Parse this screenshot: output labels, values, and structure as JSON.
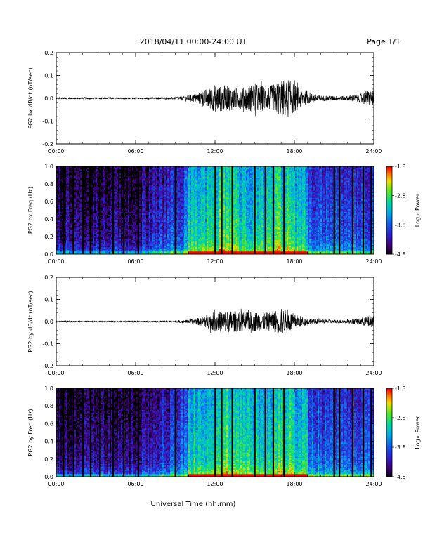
{
  "header": {
    "title": "2018/04/11  00:00-24:00 UT",
    "page": "Page 1/1"
  },
  "chart_data": [
    {
      "type": "line",
      "id": "bx-dbdt",
      "ylabel": "PG2 bx dB/dt (nT/sec)",
      "xlabel": "",
      "xlim": [
        0,
        24
      ],
      "ylim": [
        -0.2,
        0.2
      ],
      "xticks": [
        "00:00",
        "06:00",
        "12:00",
        "18:00",
        "24:00"
      ],
      "yticks": [
        "0.2",
        "0.1",
        "0.0",
        "-0.1",
        "-0.2"
      ],
      "envelope": {
        "x_hours": [
          0,
          2,
          4,
          6,
          8,
          9,
          10,
          11,
          12,
          13,
          14,
          15,
          16,
          17,
          17.5,
          18,
          19,
          20,
          21,
          22,
          23,
          23.5,
          24
        ],
        "amplitude": [
          0.004,
          0.004,
          0.003,
          0.003,
          0.004,
          0.005,
          0.012,
          0.03,
          0.06,
          0.055,
          0.045,
          0.065,
          0.05,
          0.08,
          0.09,
          0.06,
          0.025,
          0.012,
          0.01,
          0.01,
          0.02,
          0.035,
          0.035
        ]
      }
    },
    {
      "type": "heatmap",
      "id": "bx-spectrogram",
      "ylabel": "PG2 bx Freq (Hz)",
      "xlim": [
        0,
        24
      ],
      "ylim": [
        0,
        1
      ],
      "xticks": [
        "00:00",
        "06:00",
        "12:00",
        "18:00",
        "24:00"
      ],
      "yticks": [
        "1.0",
        "0.8",
        "0.6",
        "0.4",
        "0.2",
        "0.0"
      ],
      "colorbar_label": "Log₁₀ Power",
      "colorbar_ticks": [
        "-1.8",
        "-2.8",
        "-3.8",
        "-4.8"
      ],
      "color_range": [
        -4.8,
        -1.8
      ],
      "gap_lines_hours": [
        0.55,
        1.3,
        2.0,
        2.6,
        3.3,
        4.3,
        5.1,
        6.2,
        9.0,
        12.0,
        12.5,
        13.3,
        15.0,
        15.8,
        16.4,
        17.2,
        21.0,
        21.4,
        22.4,
        23.2,
        23.8
      ]
    },
    {
      "type": "line",
      "id": "by-dbdt",
      "ylabel": "PG2 by dB/dt (nT/sec)",
      "xlabel": "",
      "xlim": [
        0,
        24
      ],
      "ylim": [
        -0.2,
        0.2
      ],
      "xticks": [
        "00:00",
        "06:00",
        "12:00",
        "18:00",
        "24:00"
      ],
      "yticks": [
        "0.2",
        "0.1",
        "0.0",
        "-0.1",
        "-0.2"
      ],
      "envelope": {
        "x_hours": [
          0,
          2,
          4,
          6,
          8,
          9,
          10,
          11,
          12,
          13,
          14,
          15,
          16,
          17,
          17.5,
          18,
          19,
          20,
          21,
          22,
          23,
          23.5,
          24
        ],
        "amplitude": [
          0.003,
          0.003,
          0.003,
          0.003,
          0.003,
          0.004,
          0.008,
          0.02,
          0.045,
          0.05,
          0.045,
          0.045,
          0.04,
          0.06,
          0.05,
          0.035,
          0.015,
          0.01,
          0.008,
          0.008,
          0.015,
          0.025,
          0.025
        ]
      }
    },
    {
      "type": "heatmap",
      "id": "by-spectrogram",
      "ylabel": "PG2 by Freq (Hz)",
      "xlabel": "Universal Time (hh:mm)",
      "xlim": [
        0,
        24
      ],
      "ylim": [
        0,
        1
      ],
      "xticks": [
        "00:00",
        "06:00",
        "12:00",
        "18:00",
        "24:00"
      ],
      "yticks": [
        "1.0",
        "0.8",
        "0.6",
        "0.4",
        "0.2",
        "0.0"
      ],
      "colorbar_label": "Log₁₀ Power",
      "colorbar_ticks": [
        "-1.8",
        "-2.8",
        "-3.8",
        "-4.8"
      ],
      "color_range": [
        -4.8,
        -1.8
      ],
      "gap_lines_hours": [
        0.55,
        1.3,
        2.0,
        2.6,
        3.3,
        4.3,
        5.1,
        6.2,
        9.0,
        12.0,
        12.5,
        13.3,
        15.0,
        15.8,
        16.4,
        17.2,
        21.0,
        21.4,
        22.4,
        23.2,
        23.8
      ]
    }
  ]
}
